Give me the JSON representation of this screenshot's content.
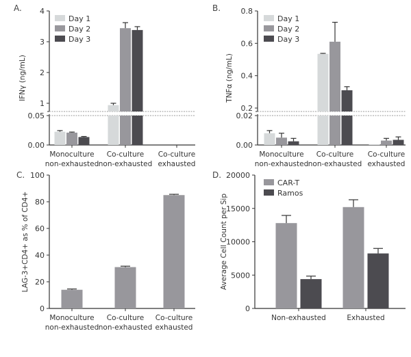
{
  "colors": {
    "day1": "#d6d9da",
    "day2": "#98979c",
    "day3": "#4c4b50",
    "single": "#98979c",
    "cart": "#98979c",
    "ramos": "#4c4b50",
    "axis": "#333333",
    "error": "#333333",
    "break_line": "#9a9a9a"
  },
  "chart_data": [
    {
      "panel": "A.",
      "type": "bar",
      "broken_axis": true,
      "ylabel": "IFNγ (ng/mL)",
      "categories": [
        [
          "Monoculture",
          "non-exhausted"
        ],
        [
          "Co-culture",
          "non-exhausted"
        ],
        [
          "Co-culture",
          "exhausted"
        ]
      ],
      "series": [
        {
          "name": "Day 1",
          "color_key": "day1",
          "values": [
            0.0225,
            0.94,
            0
          ],
          "errors": [
            0.002,
            0.06,
            0
          ]
        },
        {
          "name": "Day 2",
          "color_key": "day2",
          "values": [
            0.021,
            3.44,
            0
          ],
          "errors": [
            0.001,
            0.18,
            0
          ]
        },
        {
          "name": "Day 3",
          "color_key": "day3",
          "values": [
            0.0135,
            3.38,
            0
          ],
          "errors": [
            0.001,
            0.11,
            0
          ]
        }
      ],
      "lower_axis": {
        "ylim": [
          0,
          0.05
        ],
        "ticks": [
          "0.00",
          "0.05"
        ]
      },
      "upper_axis": {
        "ylim": [
          0.7,
          4
        ],
        "ticks": [
          "1",
          "2",
          "3",
          "4"
        ]
      },
      "legend": "top-left"
    },
    {
      "panel": "B.",
      "type": "bar",
      "broken_axis": true,
      "ylabel": "TNFα (ng/mL)",
      "categories": [
        [
          "Monoculture",
          "non-exhausted"
        ],
        [
          "Co-culture",
          "non-exhausted"
        ],
        [
          "Co-culture",
          "exhausted"
        ]
      ],
      "series": [
        {
          "name": "Day 1",
          "color_key": "day1",
          "values": [
            0.008,
            0.535,
            0.0005
          ],
          "errors": [
            0.0018,
            0.003,
            0
          ]
        },
        {
          "name": "Day 2",
          "color_key": "day2",
          "values": [
            0.005,
            0.61,
            0.003
          ],
          "errors": [
            0.003,
            0.12,
            0.0015
          ]
        },
        {
          "name": "Day 3",
          "color_key": "day3",
          "values": [
            0.0025,
            0.31,
            0.0035
          ],
          "errors": [
            0.002,
            0.022,
            0.002
          ]
        }
      ],
      "lower_axis": {
        "ylim": [
          0,
          0.02
        ],
        "ticks": [
          "0.00",
          "0.02"
        ]
      },
      "upper_axis": {
        "ylim": [
          0.2,
          0.8
        ],
        "ticks": [
          "0.2",
          "0.4",
          "0.6",
          "0.8"
        ]
      },
      "legend": "top-left"
    },
    {
      "panel": "C.",
      "type": "bar",
      "ylabel": "LAG-3+CD4+ as % of CD4+",
      "categories": [
        [
          "Monoculture",
          "non-exhausted"
        ],
        [
          "Co-culture",
          "non-exhausted"
        ],
        [
          "Co-culture",
          "exhausted"
        ]
      ],
      "series": [
        {
          "name": "LAG-3+CD4+",
          "color_key": "single",
          "values": [
            14,
            31,
            85
          ],
          "errors": [
            0.6,
            0.7,
            0.6
          ]
        }
      ],
      "ylim": [
        0,
        100
      ],
      "ticks": [
        "0",
        "20",
        "40",
        "60",
        "80",
        "100"
      ]
    },
    {
      "panel": "D.",
      "type": "bar",
      "ylabel": "Average Cell Count per Sip",
      "categories": [
        [
          "Non-exhausted"
        ],
        [
          "Exhausted"
        ]
      ],
      "series": [
        {
          "name": "CAR-T",
          "color_key": "cart",
          "values": [
            12800,
            15200
          ],
          "errors": [
            1150,
            1100
          ]
        },
        {
          "name": "Ramos",
          "color_key": "ramos",
          "values": [
            4400,
            8250
          ],
          "errors": [
            450,
            750
          ]
        }
      ],
      "ylim": [
        0,
        20000
      ],
      "ticks": [
        "0",
        "5000",
        "10000",
        "15000",
        "20000"
      ],
      "legend": "top-left"
    }
  ]
}
